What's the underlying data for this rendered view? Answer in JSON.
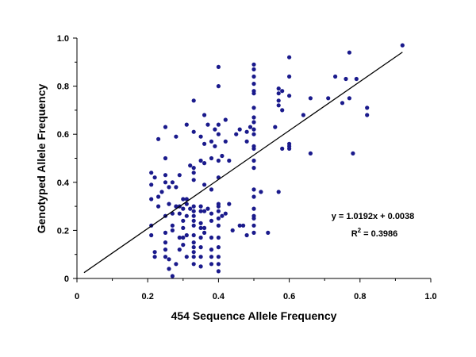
{
  "chart_data": {
    "type": "scatter",
    "xlabel": "454 Sequence Allele Frequency",
    "ylabel": "Genotyped Allele Frequency",
    "xlim": [
      0,
      1.0
    ],
    "ylim": [
      0,
      1.0
    ],
    "x_ticks": [
      "0",
      "0.2",
      "0.4",
      "0.6",
      "0.8",
      "1.0"
    ],
    "y_ticks": [
      "0",
      "0.2",
      "0.4",
      "0.6",
      "0.8",
      "1.0"
    ],
    "grid": false,
    "legend": "none",
    "marker_color": "#1a1a8c",
    "trendline": {
      "slope": 1.0192,
      "intercept": 0.0038,
      "x_range": [
        0.02,
        0.92
      ]
    },
    "annotation": {
      "equation": "y = 1.0192x + 0.0038",
      "r2_prefix": "R",
      "r2_sup": "2",
      "r2_value": " = 0.3986"
    },
    "series": [
      {
        "points": [
          [
            0.21,
            0.44
          ],
          [
            0.21,
            0.39
          ],
          [
            0.21,
            0.33
          ],
          [
            0.21,
            0.22
          ],
          [
            0.21,
            0.18
          ],
          [
            0.22,
            0.11
          ],
          [
            0.22,
            0.09
          ],
          [
            0.22,
            0.42
          ],
          [
            0.23,
            0.58
          ],
          [
            0.23,
            0.34
          ],
          [
            0.23,
            0.3
          ],
          [
            0.24,
            0.36
          ],
          [
            0.25,
            0.4
          ],
          [
            0.25,
            0.26
          ],
          [
            0.25,
            0.19
          ],
          [
            0.25,
            0.15
          ],
          [
            0.25,
            0.12
          ],
          [
            0.25,
            0.09
          ],
          [
            0.25,
            0.43
          ],
          [
            0.25,
            0.5
          ],
          [
            0.25,
            0.63
          ],
          [
            0.26,
            0.38
          ],
          [
            0.26,
            0.31
          ],
          [
            0.26,
            0.08
          ],
          [
            0.26,
            0.04
          ],
          [
            0.27,
            0.27
          ],
          [
            0.27,
            0.22
          ],
          [
            0.27,
            0.01
          ],
          [
            0.27,
            0.4
          ],
          [
            0.27,
            0.2
          ],
          [
            0.28,
            0.3
          ],
          [
            0.28,
            0.06
          ],
          [
            0.28,
            0.38
          ],
          [
            0.28,
            0.59
          ],
          [
            0.29,
            0.43
          ],
          [
            0.29,
            0.3
          ],
          [
            0.29,
            0.27
          ],
          [
            0.29,
            0.17
          ],
          [
            0.29,
            0.12
          ],
          [
            0.3,
            0.33
          ],
          [
            0.3,
            0.29
          ],
          [
            0.3,
            0.24
          ],
          [
            0.3,
            0.21
          ],
          [
            0.3,
            0.17
          ],
          [
            0.3,
            0.14
          ],
          [
            0.31,
            0.33
          ],
          [
            0.31,
            0.31
          ],
          [
            0.31,
            0.26
          ],
          [
            0.31,
            0.18
          ],
          [
            0.31,
            0.09
          ],
          [
            0.31,
            0.64
          ],
          [
            0.32,
            0.47
          ],
          [
            0.32,
            0.29
          ],
          [
            0.33,
            0.46
          ],
          [
            0.33,
            0.44
          ],
          [
            0.33,
            0.41
          ],
          [
            0.33,
            0.3
          ],
          [
            0.33,
            0.28
          ],
          [
            0.33,
            0.26
          ],
          [
            0.33,
            0.24
          ],
          [
            0.33,
            0.22
          ],
          [
            0.33,
            0.18
          ],
          [
            0.33,
            0.15
          ],
          [
            0.33,
            0.13
          ],
          [
            0.33,
            0.11
          ],
          [
            0.33,
            0.09
          ],
          [
            0.33,
            0.06
          ],
          [
            0.33,
            0.74
          ],
          [
            0.33,
            0.61
          ],
          [
            0.35,
            0.59
          ],
          [
            0.35,
            0.49
          ],
          [
            0.35,
            0.3
          ],
          [
            0.35,
            0.28
          ],
          [
            0.35,
            0.23
          ],
          [
            0.35,
            0.21
          ],
          [
            0.35,
            0.17
          ],
          [
            0.35,
            0.13
          ],
          [
            0.35,
            0.09
          ],
          [
            0.35,
            0.05
          ],
          [
            0.36,
            0.68
          ],
          [
            0.36,
            0.56
          ],
          [
            0.36,
            0.48
          ],
          [
            0.36,
            0.39
          ],
          [
            0.36,
            0.28
          ],
          [
            0.36,
            0.21
          ],
          [
            0.36,
            0.19
          ],
          [
            0.37,
            0.64
          ],
          [
            0.37,
            0.29
          ],
          [
            0.38,
            0.57
          ],
          [
            0.38,
            0.5
          ],
          [
            0.38,
            0.37
          ],
          [
            0.38,
            0.27
          ],
          [
            0.38,
            0.24
          ],
          [
            0.38,
            0.17
          ],
          [
            0.38,
            0.12
          ],
          [
            0.38,
            0.09
          ],
          [
            0.38,
            0.06
          ],
          [
            0.39,
            0.62
          ],
          [
            0.39,
            0.55
          ],
          [
            0.4,
            0.88
          ],
          [
            0.4,
            0.8
          ],
          [
            0.4,
            0.64
          ],
          [
            0.4,
            0.6
          ],
          [
            0.4,
            0.49
          ],
          [
            0.4,
            0.42
          ],
          [
            0.4,
            0.31
          ],
          [
            0.4,
            0.3
          ],
          [
            0.4,
            0.28
          ],
          [
            0.4,
            0.25
          ],
          [
            0.4,
            0.22
          ],
          [
            0.4,
            0.17
          ],
          [
            0.4,
            0.13
          ],
          [
            0.4,
            0.09
          ],
          [
            0.4,
            0.06
          ],
          [
            0.4,
            0.03
          ],
          [
            0.41,
            0.26
          ],
          [
            0.41,
            0.51
          ],
          [
            0.42,
            0.66
          ],
          [
            0.42,
            0.57
          ],
          [
            0.42,
            0.27
          ],
          [
            0.43,
            0.31
          ],
          [
            0.43,
            0.49
          ],
          [
            0.44,
            0.2
          ],
          [
            0.45,
            0.6
          ],
          [
            0.46,
            0.62
          ],
          [
            0.46,
            0.22
          ],
          [
            0.47,
            0.22
          ],
          [
            0.48,
            0.57
          ],
          [
            0.48,
            0.18
          ],
          [
            0.48,
            0.61
          ],
          [
            0.49,
            0.63
          ],
          [
            0.5,
            0.89
          ],
          [
            0.5,
            0.87
          ],
          [
            0.5,
            0.84
          ],
          [
            0.5,
            0.81
          ],
          [
            0.5,
            0.78
          ],
          [
            0.5,
            0.77
          ],
          [
            0.5,
            0.71
          ],
          [
            0.5,
            0.67
          ],
          [
            0.5,
            0.65
          ],
          [
            0.5,
            0.62
          ],
          [
            0.5,
            0.6
          ],
          [
            0.5,
            0.55
          ],
          [
            0.5,
            0.54
          ],
          [
            0.5,
            0.49
          ],
          [
            0.5,
            0.46
          ],
          [
            0.5,
            0.37
          ],
          [
            0.5,
            0.34
          ],
          [
            0.5,
            0.29
          ],
          [
            0.5,
            0.26
          ],
          [
            0.5,
            0.25
          ],
          [
            0.5,
            0.22
          ],
          [
            0.5,
            0.19
          ],
          [
            0.52,
            0.36
          ],
          [
            0.54,
            0.19
          ],
          [
            0.56,
            0.63
          ],
          [
            0.57,
            0.79
          ],
          [
            0.57,
            0.77
          ],
          [
            0.57,
            0.74
          ],
          [
            0.57,
            0.72
          ],
          [
            0.57,
            0.36
          ],
          [
            0.58,
            0.54
          ],
          [
            0.58,
            0.7
          ],
          [
            0.58,
            0.78
          ],
          [
            0.6,
            0.92
          ],
          [
            0.6,
            0.84
          ],
          [
            0.6,
            0.76
          ],
          [
            0.6,
            0.56
          ],
          [
            0.6,
            0.55
          ],
          [
            0.6,
            0.54
          ],
          [
            0.64,
            0.68
          ],
          [
            0.66,
            0.75
          ],
          [
            0.66,
            0.52
          ],
          [
            0.71,
            0.75
          ],
          [
            0.73,
            0.84
          ],
          [
            0.75,
            0.73
          ],
          [
            0.76,
            0.83
          ],
          [
            0.77,
            0.94
          ],
          [
            0.77,
            0.75
          ],
          [
            0.78,
            0.52
          ],
          [
            0.79,
            0.83
          ],
          [
            0.82,
            0.71
          ],
          [
            0.82,
            0.68
          ],
          [
            0.92,
            0.97
          ]
        ]
      }
    ]
  }
}
